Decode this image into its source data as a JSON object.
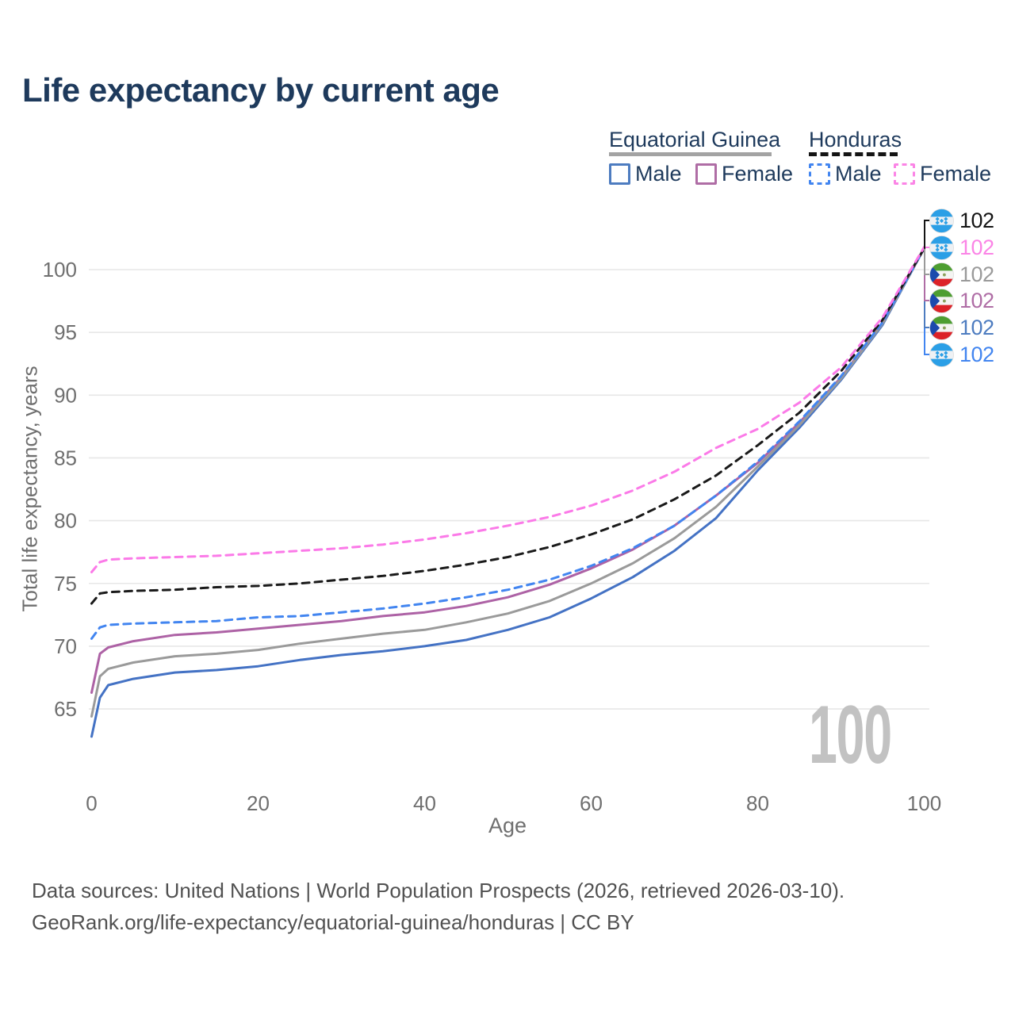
{
  "title": "Life expectancy by current age",
  "watermark": "100",
  "legend": {
    "groups": [
      {
        "label": "Equatorial Guinea",
        "style": "solid",
        "color": "#a3a3a3"
      },
      {
        "label": "Honduras",
        "style": "dashed",
        "color": "#141414"
      }
    ],
    "items": [
      {
        "label": "Male",
        "country": "Equatorial Guinea",
        "style": "solid",
        "color": "#4d7cc0"
      },
      {
        "label": "Female",
        "country": "Equatorial Guinea",
        "style": "solid",
        "color": "#af6da5"
      },
      {
        "label": "Male",
        "country": "Honduras",
        "style": "dashed",
        "color": "#4285f0"
      },
      {
        "label": "Female",
        "country": "Honduras",
        "style": "dashed",
        "color": "#fb84e6"
      }
    ]
  },
  "end_labels": [
    {
      "flag": "honduras",
      "value": "102",
      "color": "#141414"
    },
    {
      "flag": "honduras",
      "value": "102",
      "color": "#fb84e6"
    },
    {
      "flag": "equatorial-guinea",
      "value": "102",
      "color": "#9a9a9a"
    },
    {
      "flag": "equatorial-guinea",
      "value": "102",
      "color": "#af6da5"
    },
    {
      "flag": "equatorial-guinea",
      "value": "102",
      "color": "#4d7cc0"
    },
    {
      "flag": "honduras",
      "value": "102",
      "color": "#4285f0"
    }
  ],
  "chart_data": {
    "type": "line",
    "title": "Life expectancy by current age",
    "xlabel": "Age",
    "ylabel": "Total life expectancy, years",
    "xlim": [
      0,
      100
    ],
    "ylim": [
      62,
      103.5
    ],
    "xticks": [
      0,
      20,
      40,
      60,
      80,
      100
    ],
    "yticks": [
      65,
      70,
      75,
      80,
      85,
      90,
      95,
      100
    ],
    "grid": "horizontal",
    "legend_position": "top-right",
    "x": [
      0,
      1,
      2,
      5,
      10,
      15,
      20,
      25,
      30,
      35,
      40,
      45,
      50,
      55,
      60,
      65,
      70,
      75,
      80,
      85,
      90,
      95,
      100
    ],
    "series": [
      {
        "name": "Equatorial Guinea Male",
        "style": "solid",
        "color": "#4472c4",
        "values": [
          62.8,
          65.9,
          66.9,
          67.4,
          67.9,
          68.1,
          68.4,
          68.9,
          69.3,
          69.6,
          70.0,
          70.5,
          71.3,
          72.3,
          73.8,
          75.5,
          77.6,
          80.2,
          84.0,
          87.4,
          91.2,
          95.6,
          101.7
        ]
      },
      {
        "name": "Equatorial Guinea Female",
        "style": "solid",
        "color": "#ad62a5",
        "values": [
          66.3,
          69.4,
          69.9,
          70.4,
          70.9,
          71.1,
          71.4,
          71.7,
          72.0,
          72.4,
          72.7,
          73.2,
          73.9,
          74.9,
          76.2,
          77.7,
          79.6,
          82.0,
          84.6,
          87.8,
          91.4,
          95.8,
          101.7
        ]
      },
      {
        "name": "Equatorial Guinea (both sexes)",
        "style": "solid",
        "color": "#9a9a9a",
        "values": [
          64.4,
          67.6,
          68.2,
          68.7,
          69.2,
          69.4,
          69.7,
          70.2,
          70.6,
          71.0,
          71.3,
          71.9,
          72.6,
          73.6,
          75.0,
          76.6,
          78.6,
          81.1,
          84.3,
          87.6,
          91.3,
          95.7,
          101.7
        ]
      },
      {
        "name": "Honduras Male",
        "style": "dashed",
        "color": "#4285f0",
        "values": [
          70.6,
          71.5,
          71.7,
          71.8,
          71.9,
          72.0,
          72.3,
          72.4,
          72.7,
          73.0,
          73.4,
          73.9,
          74.5,
          75.3,
          76.4,
          77.8,
          79.6,
          82.0,
          84.7,
          87.9,
          91.5,
          95.8,
          101.7
        ]
      },
      {
        "name": "Honduras (both sexes)",
        "style": "dashed",
        "color": "#1a1a1a",
        "values": [
          73.4,
          74.2,
          74.3,
          74.4,
          74.5,
          74.7,
          74.8,
          75.0,
          75.3,
          75.6,
          76.0,
          76.5,
          77.1,
          77.9,
          78.9,
          80.1,
          81.7,
          83.6,
          86.0,
          88.6,
          91.9,
          96.0,
          101.7
        ]
      },
      {
        "name": "Honduras Female",
        "style": "dashed",
        "color": "#fb7ae8",
        "values": [
          75.9,
          76.7,
          76.9,
          77.0,
          77.1,
          77.2,
          77.4,
          77.6,
          77.8,
          78.1,
          78.5,
          79.0,
          79.6,
          80.3,
          81.2,
          82.4,
          83.9,
          85.8,
          87.3,
          89.4,
          92.2,
          96.2,
          101.8
        ]
      }
    ]
  },
  "footer": {
    "line1": "Data sources: United Nations | World Population Prospects (2026, retrieved 2026-03-10).",
    "line2": "GeoRank.org/life-expectancy/equatorial-guinea/honduras | CC BY"
  }
}
